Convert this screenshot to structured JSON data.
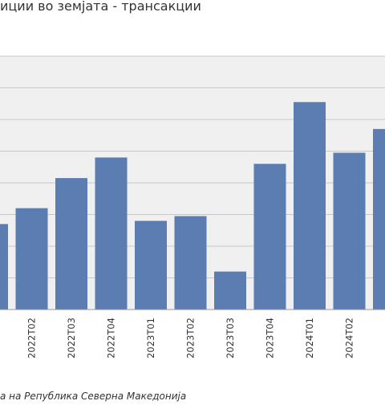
{
  "title": "иции во земјата - трансакции",
  "source": "а на Република Северна Македонија",
  "chart_data": {
    "type": "bar",
    "title": "иции во земјата - трансакции",
    "xlabel": "",
    "ylabel": "",
    "ylim": [
      0,
      8
    ],
    "grid": true,
    "categories": [
      "",
      "2022Т02",
      "2022Т03",
      "2022Т04",
      "2023Т01",
      "2023Т02",
      "2023Т03",
      "2023Т04",
      "2024Т01",
      "2024Т02",
      ""
    ],
    "series": [
      {
        "values": [
          2.7,
          3.2,
          4.15,
          4.8,
          2.8,
          2.95,
          1.2,
          4.6,
          6.55,
          4.95,
          5.7
        ]
      }
    ],
    "colors": {
      "bar": "#5b7db1",
      "grid": "#c8c8c8",
      "plot_background": "#f0f0f0",
      "axis": "#999999"
    }
  }
}
